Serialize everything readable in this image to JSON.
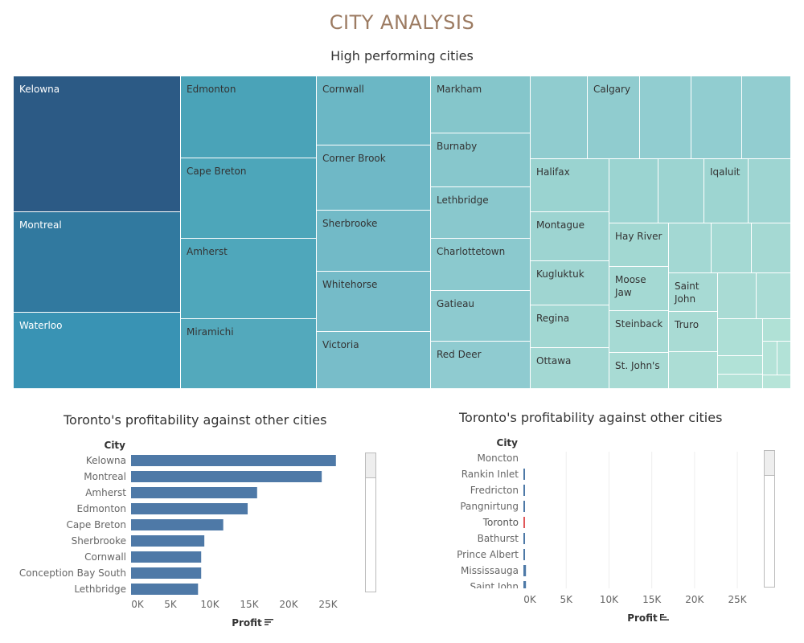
{
  "dashboard": {
    "title": "CITY ANALYSIS",
    "treemap_title": "High performing cities"
  },
  "colors": {
    "title": "#9c7b62",
    "bar": "#4e79a7",
    "highlight": "#e15759",
    "treemap_dark": "#2b5a86",
    "treemap_light": "#b6e2d4"
  },
  "treemap": {
    "cells": [
      {
        "label": "Kelowna",
        "color": "#2c5a85",
        "light_text": true
      },
      {
        "label": "Montreal",
        "color": "#31799f",
        "light_text": true
      },
      {
        "label": "Waterloo",
        "color": "#3993b4",
        "light_text": true
      },
      {
        "label": "Edmonton",
        "color": "#4aa3b8"
      },
      {
        "label": "Cape Breton",
        "color": "#4da6ba"
      },
      {
        "label": "Amherst",
        "color": "#4fa7bb"
      },
      {
        "label": "Miramichi",
        "color": "#53a9bc"
      },
      {
        "label": "Cornwall",
        "color": "#6bb7c5"
      },
      {
        "label": "Corner Brook",
        "color": "#6fb8c6"
      },
      {
        "label": "Sherbrooke",
        "color": "#72bac7"
      },
      {
        "label": "Whitehorse",
        "color": "#75bbc8"
      },
      {
        "label": "Victoria",
        "color": "#78bdc9"
      },
      {
        "label": "Markham",
        "color": "#85c6cb"
      },
      {
        "label": "Burnaby",
        "color": "#87c7cc"
      },
      {
        "label": "Lethbridge",
        "color": "#89c8cd"
      },
      {
        "label": "Charlottetown",
        "color": "#8bc9ce"
      },
      {
        "label": "Gatieau",
        "color": "#8dcacf"
      },
      {
        "label": "Red Deer",
        "color": "#8fcbd0"
      },
      {
        "label": "",
        "color": "#90cccf"
      },
      {
        "label": "Calgary",
        "color": "#90cccf"
      },
      {
        "label": "",
        "color": "#91cdd0"
      },
      {
        "label": "",
        "color": "#91cdd0"
      },
      {
        "label": "",
        "color": "#92cdd0"
      },
      {
        "label": "Halifax",
        "color": "#9ad3d0"
      },
      {
        "label": "",
        "color": "#9bd4d1"
      },
      {
        "label": "",
        "color": "#9cd4d1"
      },
      {
        "label": "Iqaluit",
        "color": "#9dd5d1"
      },
      {
        "label": "",
        "color": "#9ed5d2"
      },
      {
        "label": "Montague",
        "color": "#9dd4d1"
      },
      {
        "label": "Hay River",
        "color": "#a2d8d2"
      },
      {
        "label": "",
        "color": "#a3d8d3"
      },
      {
        "label": "",
        "color": "#a4d9d3"
      },
      {
        "label": "",
        "color": "#a5d9d3"
      },
      {
        "label": "Kugluktuk",
        "color": "#9fd5d1"
      },
      {
        "label": "Moose Jaw",
        "color": "#a4d9d3"
      },
      {
        "label": "Saint John",
        "color": "#a7dad4"
      },
      {
        "label": "",
        "color": "#a9dbd4"
      },
      {
        "label": "",
        "color": "#aadcd5"
      },
      {
        "label": "Regina",
        "color": "#a1d7d2"
      },
      {
        "label": "Steinback",
        "color": "#a6dad4"
      },
      {
        "label": "Truro",
        "color": "#a9dbd4"
      },
      {
        "label": "",
        "color": "#addfd6"
      },
      {
        "label": "",
        "color": "#b0e1d6"
      },
      {
        "label": "Ottawa",
        "color": "#a3d8d3"
      },
      {
        "label": "St. John's",
        "color": "#a8dbd4"
      },
      {
        "label": "",
        "color": "#acddd5"
      },
      {
        "label": "",
        "color": "#b1e2d7"
      },
      {
        "label": "",
        "color": "#b4e3d8"
      },
      {
        "label": "",
        "color": "#b2e2d7"
      },
      {
        "label": "",
        "color": "#b3e2d7"
      },
      {
        "label": "",
        "color": "#b6e4d8"
      }
    ]
  },
  "chart_data": [
    {
      "type": "bar",
      "orientation": "horizontal",
      "title": "Toronto's profitability against other cities",
      "row_header": "City",
      "xlabel": "Profit",
      "xlim": [
        0,
        30000
      ],
      "xticks": [
        0,
        5000,
        10000,
        15000,
        20000,
        25000
      ],
      "xtick_labels": [
        "0K",
        "5K",
        "10K",
        "15K",
        "20K",
        "25K"
      ],
      "categories": [
        "Kelowna",
        "Montreal",
        "Amherst",
        "Edmonton",
        "Cape Breton",
        "Sherbrooke",
        "Cornwall",
        "Conception Bay South",
        "Lethbridge"
      ],
      "values": [
        26000,
        24200,
        16000,
        14800,
        11700,
        9300,
        8900,
        8900,
        8500
      ],
      "gridlines": false
    },
    {
      "type": "bar",
      "orientation": "horizontal",
      "title": "Toronto's profitability against other cities",
      "row_header": "City",
      "xlabel": "Profit",
      "xlim": [
        0,
        28000
      ],
      "xticks": [
        0,
        5000,
        10000,
        15000,
        20000,
        25000
      ],
      "xtick_labels": [
        "0K",
        "5K",
        "10K",
        "15K",
        "20K",
        "25K"
      ],
      "categories": [
        "Moncton",
        "Rankin Inlet",
        "Fredricton",
        "Pangnirtung",
        "Toronto",
        "Bathurst",
        "Prince Albert",
        "Mississauga",
        "Saint John"
      ],
      "values": [
        0,
        50,
        80,
        100,
        80,
        130,
        160,
        300,
        300
      ],
      "highlight": "Toronto",
      "gridlines": true
    }
  ]
}
